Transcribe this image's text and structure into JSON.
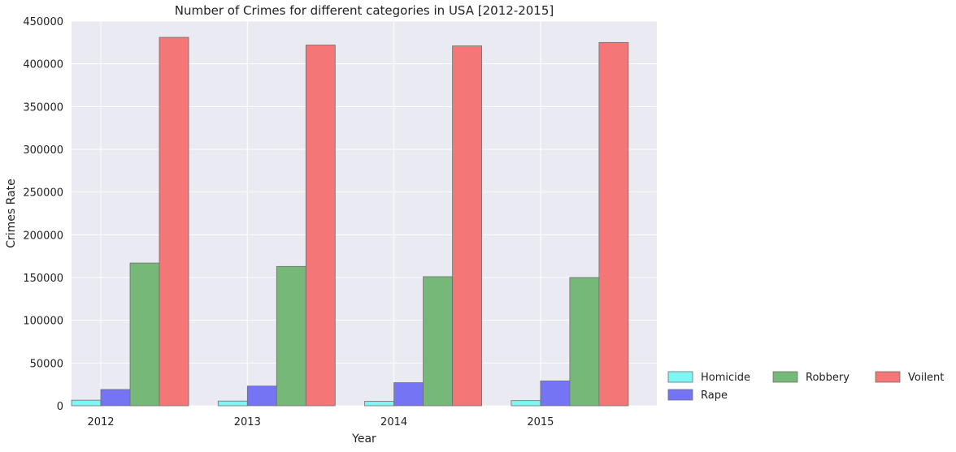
{
  "chart_data": {
    "type": "bar",
    "title": "Number of Crimes for different categories in USA [2012-2015]",
    "xlabel": "Year",
    "ylabel": "Crimes Rate",
    "categories": [
      "2012",
      "2013",
      "2014",
      "2015"
    ],
    "ylim": [
      0,
      450000
    ],
    "yticks": [
      0,
      50000,
      100000,
      150000,
      200000,
      250000,
      300000,
      350000,
      400000,
      450000
    ],
    "grid": true,
    "legend_position": "bottom-right-outside",
    "series": [
      {
        "name": "Homicide",
        "color": "#7ff5f5",
        "values": [
          6500,
          5500,
          5200,
          6000
        ]
      },
      {
        "name": "Rape",
        "color": "#7474f4",
        "values": [
          19000,
          23000,
          27000,
          29000
        ]
      },
      {
        "name": "Robbery",
        "color": "#76b877",
        "values": [
          167000,
          163000,
          151000,
          150000
        ]
      },
      {
        "name": "Voilent",
        "color": "#f47677",
        "values": [
          431000,
          422000,
          421000,
          425000
        ]
      }
    ]
  }
}
